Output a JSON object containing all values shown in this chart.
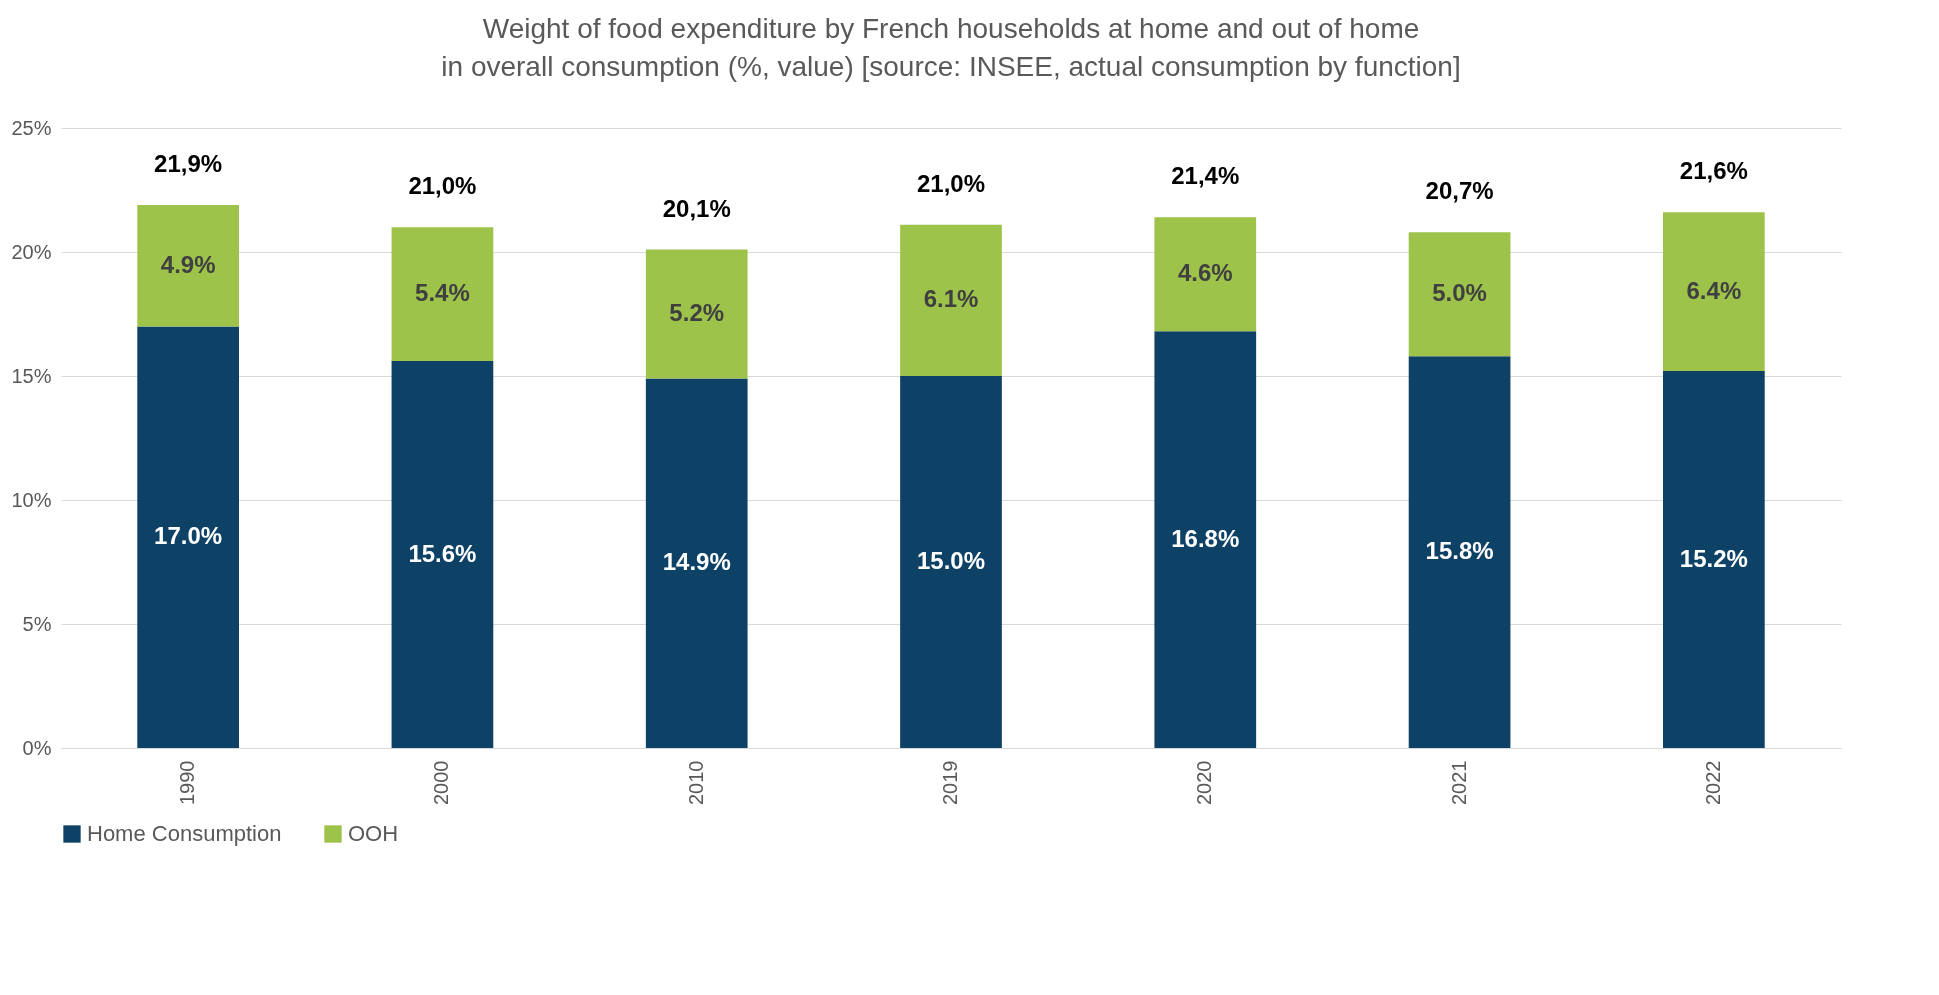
{
  "chart_data": {
    "type": "bar",
    "title": "Weight of food expenditure by French households at home and out of home\nin overall consumption (%, value) [source: INSEE, actual consumption by function]",
    "categories": [
      "1990",
      "2000",
      "2010",
      "2019",
      "2020",
      "2021",
      "2022"
    ],
    "series": [
      {
        "name": "Home Consumption",
        "color": "#0e4166",
        "values": [
          17.0,
          15.6,
          14.9,
          15.0,
          16.8,
          15.8,
          15.2
        ],
        "value_labels": [
          "17.0%",
          "15.6%",
          "14.9%",
          "15.0%",
          "16.8%",
          "15.8%",
          "15.2%"
        ]
      },
      {
        "name": "OOH",
        "color": "#9dc34a",
        "values": [
          4.9,
          5.4,
          5.2,
          6.1,
          4.6,
          5.0,
          6.4
        ],
        "value_labels": [
          "4.9%",
          "5.4%",
          "5.2%",
          "6.1%",
          "4.6%",
          "5.0%",
          "6.4%"
        ]
      }
    ],
    "stacked": true,
    "totals": [
      "21,9%",
      "21,0%",
      "20,1%",
      "21,0%",
      "21,4%",
      "20,7%",
      "21,6%"
    ],
    "ylim": [
      0,
      25
    ],
    "yticks": [
      {
        "value": 0,
        "label": "0%"
      },
      {
        "value": 5,
        "label": "5%"
      },
      {
        "value": 10,
        "label": "10%"
      },
      {
        "value": 15,
        "label": "15%"
      },
      {
        "value": 20,
        "label": "20%"
      },
      {
        "value": 25,
        "label": "25%"
      }
    ],
    "grid": "y",
    "legend": "bottom"
  }
}
